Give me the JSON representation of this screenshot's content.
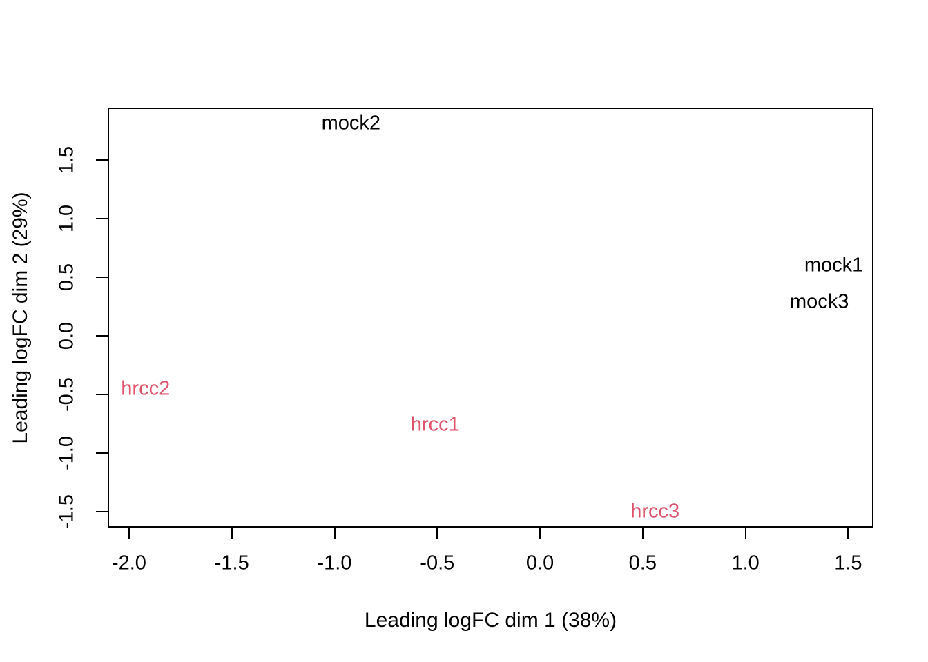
{
  "figure": {
    "background": "#ffffff",
    "axis_color": "#000000"
  },
  "chart_data": {
    "type": "scatter",
    "subtype": "mds-text-label-plot",
    "title": "",
    "xlabel": "Leading logFC dim 1 (38%)",
    "ylabel": "Leading logFC dim 2 (29%)",
    "xlim": [
      -2.104,
      1.623
    ],
    "ylim": [
      -1.635,
      1.948
    ],
    "grid": false,
    "legend": "none",
    "x_ticks": [
      {
        "value": -2.0,
        "label": "-2.0"
      },
      {
        "value": -1.5,
        "label": "-1.5"
      },
      {
        "value": -1.0,
        "label": "-1.0"
      },
      {
        "value": -0.5,
        "label": "-0.5"
      },
      {
        "value": 0.0,
        "label": "0.0"
      },
      {
        "value": 0.5,
        "label": "0.5"
      },
      {
        "value": 1.0,
        "label": "1.0"
      },
      {
        "value": 1.5,
        "label": "1.5"
      }
    ],
    "y_ticks": [
      {
        "value": -1.5,
        "label": "-1.5"
      },
      {
        "value": -1.0,
        "label": "-1.0"
      },
      {
        "value": -0.5,
        "label": "-0.5"
      },
      {
        "value": 0.0,
        "label": "0.0"
      },
      {
        "value": 0.5,
        "label": "0.5"
      },
      {
        "value": 1.0,
        "label": "1.0"
      },
      {
        "value": 1.5,
        "label": "1.5"
      }
    ],
    "series": [
      {
        "name": "mock",
        "color": "#000000",
        "marker": "text-label",
        "points": [
          {
            "label": "mock2",
            "x": -0.92,
            "y": 1.81
          },
          {
            "label": "mock1",
            "x": 1.43,
            "y": 0.6
          },
          {
            "label": "mock3",
            "x": 1.36,
            "y": 0.29
          }
        ]
      },
      {
        "name": "hrcc",
        "color": "#DF536B",
        "marker": "text-label",
        "points": [
          {
            "label": "hrcc2",
            "x": -1.92,
            "y": -0.45
          },
          {
            "label": "hrcc1",
            "x": -0.51,
            "y": -0.76
          },
          {
            "label": "hrcc3",
            "x": 0.56,
            "y": -1.5
          }
        ]
      }
    ]
  }
}
